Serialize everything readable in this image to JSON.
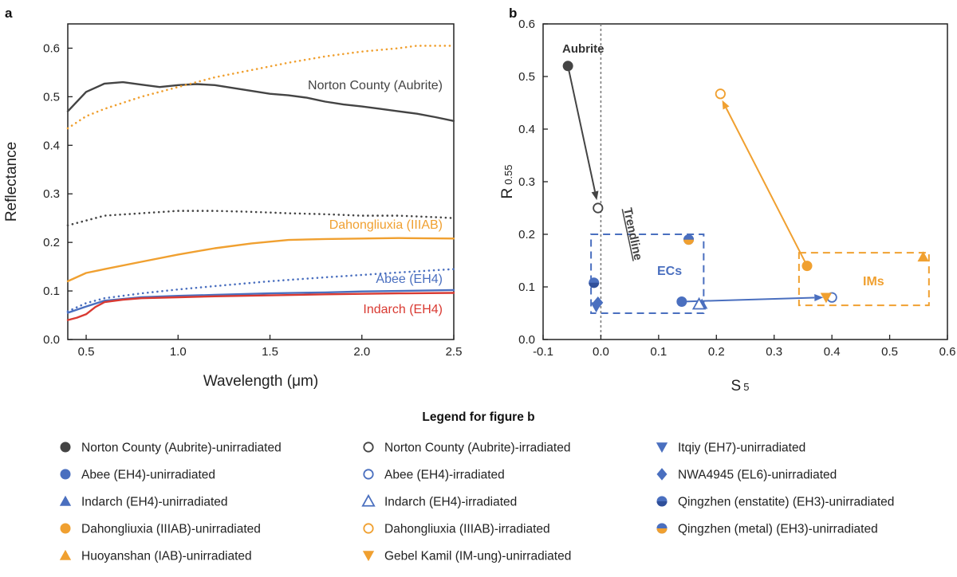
{
  "chart_data": [
    {
      "panel": "a",
      "type": "line",
      "xlabel": "Wavelength (μm)",
      "ylabel": "Reflectance",
      "xlim": [
        0.4,
        2.5
      ],
      "ylim": [
        0.0,
        0.65
      ],
      "xticks": [
        "0.5",
        "1.0",
        "1.5",
        "2.0",
        "2.5"
      ],
      "yticks": [
        "0.0",
        "0.1",
        "0.2",
        "0.3",
        "0.4",
        "0.5",
        "0.6"
      ],
      "series": [
        {
          "name": "Norton County (Aubrite)",
          "label": "Norton County (Aubrite)",
          "color": "#444444",
          "style": "solid",
          "x": [
            0.4,
            0.5,
            0.6,
            0.7,
            0.8,
            0.9,
            1.0,
            1.1,
            1.2,
            1.3,
            1.4,
            1.5,
            1.6,
            1.7,
            1.8,
            1.9,
            2.0,
            2.1,
            2.2,
            2.3,
            2.4,
            2.5
          ],
          "y": [
            0.47,
            0.51,
            0.527,
            0.53,
            0.525,
            0.52,
            0.524,
            0.526,
            0.524,
            0.518,
            0.512,
            0.506,
            0.503,
            0.498,
            0.49,
            0.484,
            0.48,
            0.475,
            0.47,
            0.465,
            0.458,
            0.45
          ]
        },
        {
          "name": "Norton County (Aubrite) irradiated",
          "color": "#444444",
          "style": "dotted",
          "x": [
            0.4,
            0.6,
            0.8,
            1.0,
            1.2,
            1.4,
            1.6,
            1.8,
            2.0,
            2.2,
            2.4,
            2.5
          ],
          "y": [
            0.235,
            0.255,
            0.26,
            0.265,
            0.265,
            0.263,
            0.26,
            0.258,
            0.255,
            0.255,
            0.252,
            0.25
          ]
        },
        {
          "name": "Dahongliuxia (IIIAB)",
          "label": "Dahongliuxia (IIIAB)",
          "color": "#f0a030",
          "style": "solid",
          "x": [
            0.4,
            0.5,
            0.6,
            0.8,
            1.0,
            1.2,
            1.4,
            1.6,
            1.8,
            2.0,
            2.2,
            2.5
          ],
          "y": [
            0.12,
            0.137,
            0.145,
            0.16,
            0.175,
            0.188,
            0.198,
            0.205,
            0.207,
            0.208,
            0.209,
            0.208
          ]
        },
        {
          "name": "Dahongliuxia (IIIAB) irradiated",
          "color": "#f0a030",
          "style": "dotted",
          "x": [
            0.4,
            0.5,
            0.6,
            0.8,
            1.0,
            1.2,
            1.4,
            1.6,
            1.8,
            2.0,
            2.2,
            2.3,
            2.5
          ],
          "y": [
            0.435,
            0.46,
            0.475,
            0.5,
            0.52,
            0.54,
            0.555,
            0.57,
            0.583,
            0.593,
            0.6,
            0.605,
            0.605
          ]
        },
        {
          "name": "Abee (EH4)",
          "label": "Abee (EH4)",
          "color": "#4a6fbf",
          "style": "solid",
          "x": [
            0.4,
            0.5,
            0.6,
            0.8,
            1.0,
            1.2,
            1.5,
            1.8,
            2.0,
            2.2,
            2.5
          ],
          "y": [
            0.055,
            0.068,
            0.08,
            0.087,
            0.09,
            0.092,
            0.095,
            0.097,
            0.099,
            0.1,
            0.102
          ]
        },
        {
          "name": "Abee (EH4) irradiated",
          "color": "#4a6fbf",
          "style": "dotted",
          "x": [
            0.4,
            0.5,
            0.6,
            0.8,
            1.0,
            1.2,
            1.5,
            1.8,
            2.0,
            2.2,
            2.5
          ],
          "y": [
            0.058,
            0.075,
            0.085,
            0.095,
            0.103,
            0.11,
            0.12,
            0.128,
            0.133,
            0.138,
            0.145
          ]
        },
        {
          "name": "Indarch (EH4)",
          "label": "Indarch (EH4)",
          "color": "#d93a32",
          "style": "solid",
          "x": [
            0.4,
            0.45,
            0.5,
            0.55,
            0.6,
            0.7,
            0.8,
            1.0,
            1.2,
            1.5,
            1.8,
            2.0,
            2.2,
            2.5
          ],
          "y": [
            0.04,
            0.045,
            0.052,
            0.067,
            0.077,
            0.082,
            0.085,
            0.087,
            0.089,
            0.091,
            0.093,
            0.094,
            0.095,
            0.096
          ]
        }
      ]
    },
    {
      "panel": "b",
      "type": "scatter",
      "xlabel": "S",
      "xlabel_sub": "5",
      "ylabel": "R",
      "ylabel_sub": "0.55",
      "xlim": [
        -0.1,
        0.6
      ],
      "ylim": [
        0.0,
        0.6
      ],
      "xticks": [
        "-0.1",
        "0.0",
        "0.1",
        "0.2",
        "0.3",
        "0.4",
        "0.5",
        "0.6"
      ],
      "yticks": [
        "0.0",
        "0.1",
        "0.2",
        "0.3",
        "0.4",
        "0.5",
        "0.6"
      ],
      "annotations": {
        "aubrite": "Aubrite",
        "trendline": "Trendline",
        "ecs": "ECs",
        "ims": "IMs"
      },
      "points": [
        {
          "name": "Norton County (Aubrite)-unirradiated",
          "marker": "circle",
          "fill": "#444444",
          "x": -0.057,
          "y": 0.52
        },
        {
          "name": "Norton County (Aubrite)-irradiated",
          "marker": "circle-open",
          "fill": "#444444",
          "x": -0.005,
          "y": 0.25
        },
        {
          "name": "Abee (EH4)-unirradiated",
          "marker": "circle",
          "fill": "#4a6fbf",
          "x": 0.14,
          "y": 0.072
        },
        {
          "name": "Abee (EH4)-irradiated",
          "marker": "circle-open",
          "fill": "#4a6fbf",
          "x": 0.4,
          "y": 0.08
        },
        {
          "name": "Indarch (EH4)-unirradiated",
          "marker": "triangle-up",
          "fill": "#4a6fbf",
          "x": 0.175,
          "y": 0.067
        },
        {
          "name": "Indarch (EH4)-irradiated",
          "marker": "triangle-up-open",
          "fill": "#4a6fbf",
          "x": 0.17,
          "y": 0.067
        },
        {
          "name": "Dahongliuxia (IIIAB)-unirradiated",
          "marker": "circle",
          "fill": "#f0a030",
          "x": 0.357,
          "y": 0.14
        },
        {
          "name": "Dahongliuxia (IIIAB)-irradiated",
          "marker": "circle-open",
          "fill": "#f0a030",
          "x": 0.207,
          "y": 0.467
        },
        {
          "name": "Huoyanshan (IAB)-unirradiated",
          "marker": "triangle-up",
          "fill": "#f0a030",
          "x": 0.558,
          "y": 0.157
        },
        {
          "name": "Gebel Kamil (IM-ung)-unirradiated",
          "marker": "triangle-down",
          "fill": "#f0a030",
          "x": 0.39,
          "y": 0.08
        },
        {
          "name": "Itqiy (EH7)-unirradiated",
          "marker": "triangle-down",
          "fill": "#4a6fbf",
          "x": -0.008,
          "y": 0.062
        },
        {
          "name": "NWA4945 (EL6)-unirradiated",
          "marker": "diamond",
          "fill": "#4a6fbf",
          "x": -0.005,
          "y": 0.07
        },
        {
          "name": "Qingzhen (enstatite) (EH3)-unirradiated",
          "marker": "circle-split",
          "fill": "#4a6fbf",
          "x": -0.012,
          "y": 0.108
        },
        {
          "name": "Qingzhen (metal) (EH3)-unirradiated",
          "marker": "circle-split",
          "fill": "#f0a030",
          "x": 0.152,
          "y": 0.19
        }
      ],
      "arrows": [
        {
          "from": [
            -0.057,
            0.52
          ],
          "to": [
            -0.007,
            0.265
          ],
          "color": "#444444"
        },
        {
          "from": [
            0.357,
            0.14
          ],
          "to": [
            0.21,
            0.455
          ],
          "color": "#f0a030"
        },
        {
          "from": [
            0.14,
            0.072
          ],
          "to": [
            0.385,
            0.08
          ],
          "color": "#4a6fbf"
        }
      ],
      "boxes": [
        {
          "name": "ECs",
          "x": [
            -0.017,
            0.178
          ],
          "y": [
            0.05,
            0.2
          ],
          "color": "#4a6fbf"
        },
        {
          "name": "IMs",
          "x": [
            0.343,
            0.568
          ],
          "y": [
            0.065,
            0.165
          ],
          "color": "#f0a030"
        }
      ]
    }
  ],
  "panels": {
    "a": "a",
    "b": "b"
  },
  "legend": {
    "title": "Legend for figure b",
    "columns": [
      [
        {
          "label": "Norton County (Aubrite)-unirradiated",
          "marker": "circle",
          "color": "#444444"
        },
        {
          "label": "Abee (EH4)-unirradiated",
          "marker": "circle",
          "color": "#4a6fbf"
        },
        {
          "label": "Indarch (EH4)-unirradiated",
          "marker": "triangle-up",
          "color": "#4a6fbf"
        },
        {
          "label": "Dahongliuxia (IIIAB)-unirradiated",
          "marker": "circle",
          "color": "#f0a030"
        },
        {
          "label": "Huoyanshan (IAB)-unirradiated",
          "marker": "triangle-up",
          "color": "#f0a030"
        }
      ],
      [
        {
          "label": "Norton County (Aubrite)-irradiated",
          "marker": "circle-open",
          "color": "#444444"
        },
        {
          "label": "Abee (EH4)-irradiated",
          "marker": "circle-open",
          "color": "#4a6fbf"
        },
        {
          "label": "Indarch (EH4)-irradiated",
          "marker": "triangle-up-open",
          "color": "#4a6fbf"
        },
        {
          "label": "Dahongliuxia (IIIAB)-irradiated",
          "marker": "circle-open",
          "color": "#f0a030"
        },
        {
          "label": "Gebel Kamil (IM-ung)-unirradiated",
          "marker": "triangle-down",
          "color": "#f0a030"
        }
      ],
      [
        {
          "label": "Itqiy (EH7)-unirradiated",
          "marker": "triangle-down",
          "color": "#4a6fbf"
        },
        {
          "label": "NWA4945 (EL6)-unirradiated",
          "marker": "diamond",
          "color": "#4a6fbf"
        },
        {
          "label": "Qingzhen (enstatite) (EH3)-unirradiated",
          "marker": "circle-split",
          "color": "#4a6fbf"
        },
        {
          "label": "Qingzhen (metal) (EH3)-unirradiated",
          "marker": "circle-split",
          "color": "#f0a030"
        }
      ]
    ]
  }
}
